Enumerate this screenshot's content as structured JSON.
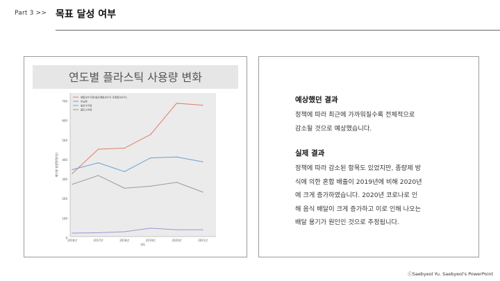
{
  "header": {
    "part_label": "Part 3  >>",
    "title": "목표 달성 여부"
  },
  "chart_data": {
    "type": "line",
    "title": "연도별 플라스틱 사용량 변화",
    "categories": [
      "2016년",
      "2017년",
      "2018년",
      "2019년",
      "2020년",
      "2021년"
    ],
    "xlabel": "연도",
    "ylabel": "폐기물 발생량(톤/일)",
    "ylim": [
      0,
      700
    ],
    "yticks": [
      0,
      100,
      200,
      300,
      400,
      500,
      600,
      700
    ],
    "legend_position": "top-left",
    "grid": false,
    "series": [
      {
        "name": "폐합성수지류(발포폐합성수지 포함합성수지)",
        "color": "#e07b6a",
        "values": [
          330,
          455,
          460,
          530,
          690,
          680
        ]
      },
      {
        "name": "비닐류",
        "color": "#6a9fcf",
        "values": [
          350,
          385,
          340,
          410,
          415,
          390
        ]
      },
      {
        "name": "발포수지류",
        "color": "#9d95d4",
        "values": [
          25,
          27,
          32,
          50,
          42,
          42
        ]
      },
      {
        "name": "플라스틱류",
        "color": "#999999",
        "values": [
          275,
          320,
          255,
          265,
          285,
          235
        ]
      }
    ]
  },
  "expected": {
    "heading": "예상했던 결과",
    "lines": [
      "정책에 따라 최근에 가까워질수록 전체적으로",
      "감소될 것으로 예상했습니다."
    ]
  },
  "actual": {
    "heading": "실제 결과",
    "lines": [
      "정책에 따라 감소된 항목도 있었지만, 종량제 방",
      "식에 의한 혼합 배출이 2019년에 비해 2020년",
      "에 크게 증가하였습니다. 2020년 코로나로 인",
      "해 음식 배달이 크게 증가하고 이로 인해 나오는",
      "배달 용기가 원인인 것으로 추정됩니다."
    ]
  },
  "footer": {
    "credit": "ⓒSaebyeol Yu. Saebyeol's PowerPoint"
  }
}
